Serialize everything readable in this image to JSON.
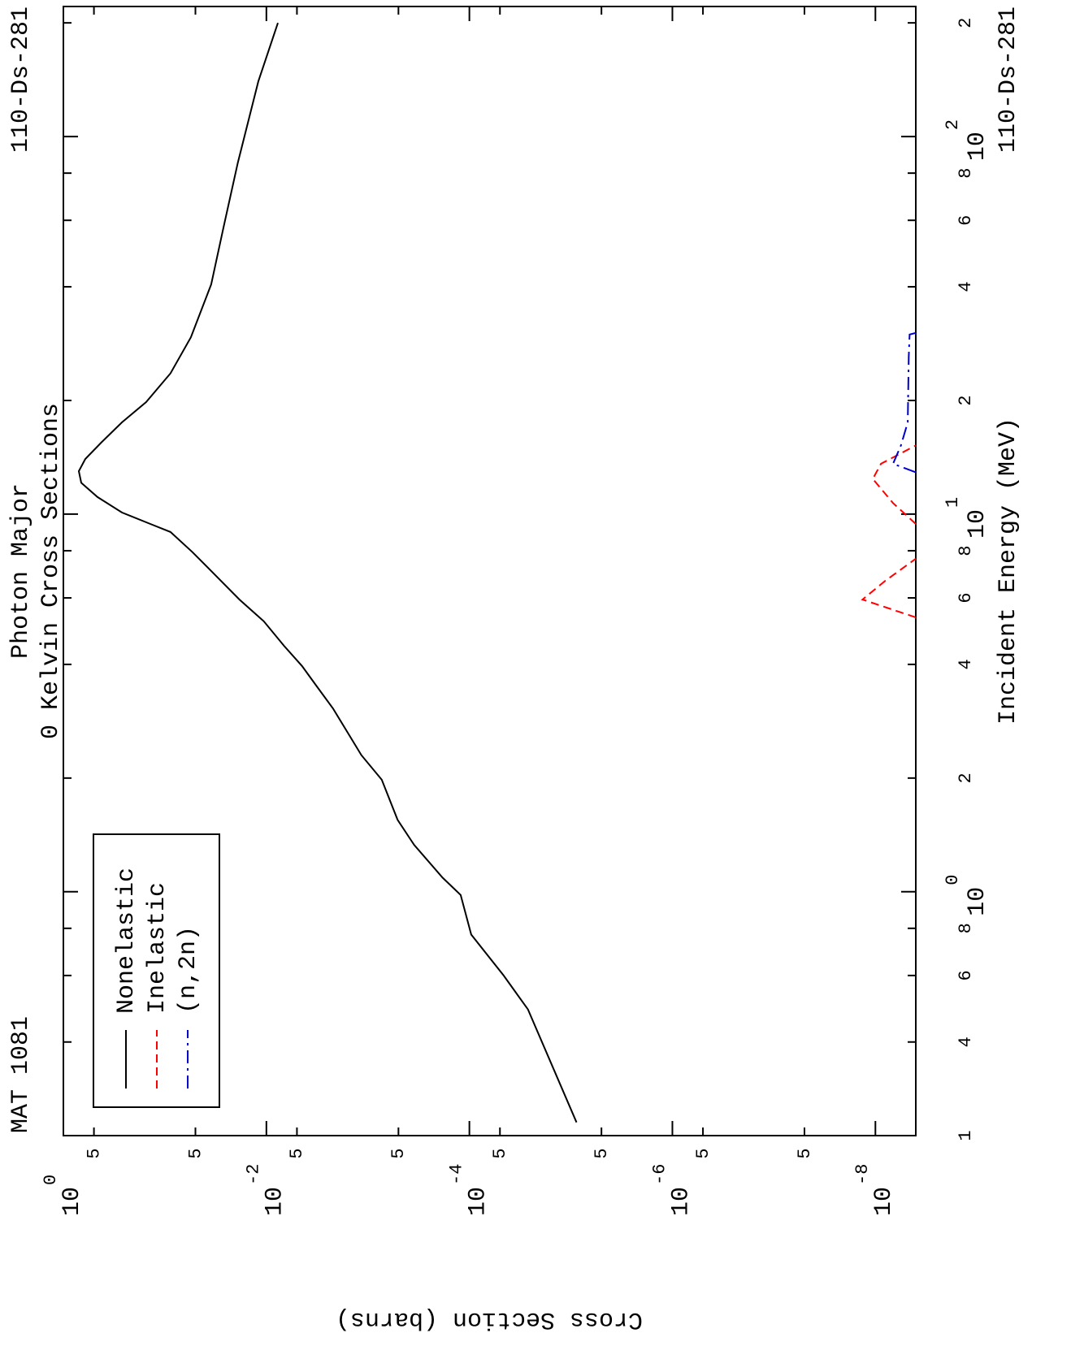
{
  "chart_data": {
    "type": "line",
    "title": "Photon Major",
    "subtitle": "0 Kelvin Cross Sections",
    "material": "MAT 1081",
    "nuclide": "110-Ds-281",
    "nuclide_bottom": "110-Ds-281",
    "x_label": "Incident Energy (MeV)",
    "y_label": "Cross Section (barns)",
    "x_scale": "log",
    "y_scale": "log",
    "xlim": [
      0.226,
      221
    ],
    "ylim": [
      1,
      4e-09
    ],
    "xticks": [
      {
        "value": 0.226,
        "label": "1"
      },
      {
        "value": 0.4,
        "label": "4"
      },
      {
        "value": 0.6,
        "label": "6"
      },
      {
        "value": 0.8,
        "label": "8"
      },
      {
        "value": 1,
        "label": "10",
        "exponent": "0"
      },
      2,
      4,
      6,
      8,
      {
        "value": 10,
        "label": "10",
        "exponent": "1"
      },
      {
        "value": 20,
        "label": "2"
      },
      {
        "value": 40,
        "label": "4"
      },
      {
        "value": 60,
        "label": "6"
      },
      {
        "value": 80,
        "label": "8"
      },
      {
        "value": 100,
        "label": "10",
        "exponent": "2"
      },
      {
        "value": 200,
        "label": "2"
      }
    ],
    "yticks": [
      {
        "value": 1,
        "label": "10",
        "exponent": "0"
      },
      {
        "value": 0.5,
        "label": "5"
      },
      {
        "value": 0.05,
        "label": "5"
      },
      {
        "value": 0.01,
        "label": "10",
        "exponent": "-2"
      },
      {
        "value": 0.005,
        "label": "5"
      },
      {
        "value": 0.0005,
        "label": "5"
      },
      {
        "value": 0.0001,
        "label": "10",
        "exponent": "-4"
      },
      {
        "value": 5e-05,
        "label": "5"
      },
      {
        "value": 5e-06,
        "label": "5"
      },
      {
        "value": 1e-06,
        "label": "10",
        "exponent": "-6"
      },
      {
        "value": 5e-07,
        "label": "5"
      },
      {
        "value": 5e-08,
        "label": "5"
      },
      {
        "value": 1e-08,
        "label": "10",
        "exponent": "-8"
      }
    ],
    "legend": "top-left",
    "series": [
      {
        "name": "Nonelastic",
        "color": "#000000",
        "dash": "solid",
        "x": [
          0.245,
          0.488,
          0.6,
          0.77,
          0.98,
          1.09,
          1.33,
          1.55,
          1.98,
          2.3,
          2.6,
          3.06,
          3.5,
          3.96,
          4.48,
          5.2,
          5.94,
          7.0,
          7.93,
          8.97,
          9.42,
          10.1,
          11.1,
          12.1,
          13.0,
          14.0,
          15.5,
          17.5,
          19.8,
          23.6,
          29.4,
          40.6,
          57.4,
          85.3,
          140,
          200
        ],
        "values": [
          8.8e-06,
          2.65e-05,
          4.6e-05,
          9.6e-05,
          0.000122,
          0.000184,
          0.00035,
          0.00051,
          0.00073,
          0.00116,
          0.00153,
          0.00221,
          0.00319,
          0.00445,
          0.0067,
          0.0106,
          0.0184,
          0.0337,
          0.0535,
          0.088,
          0.139,
          0.265,
          0.461,
          0.667,
          0.705,
          0.608,
          0.421,
          0.265,
          0.153,
          0.088,
          0.0555,
          0.035,
          0.0265,
          0.0191,
          0.012,
          0.0077
        ]
      },
      {
        "name": "Inelastic",
        "color": "#ff0000",
        "dash": "dashed",
        "x": [
          5.33,
          5.94,
          6.66,
          7.62,
          null,
          9.42,
          10.7,
          12.4,
          13.6,
          15.2
        ],
        "values": [
          4e-09,
          1.34e-08,
          8e-09,
          4e-09,
          null,
          4e-09,
          6.7e-09,
          1.06e-08,
          8.8e-09,
          4e-09
        ]
      },
      {
        "name": "(n,2n)",
        "color": "#0000cc",
        "dash": "dashdot",
        "x": [
          12.9,
          13.6,
          15.2,
          17.5,
          26,
          29.9,
          30.2
        ],
        "values": [
          4e-09,
          6.7e-09,
          5.6e-09,
          4.8e-09,
          4.7e-09,
          4.6e-09,
          4e-09
        ]
      }
    ]
  }
}
